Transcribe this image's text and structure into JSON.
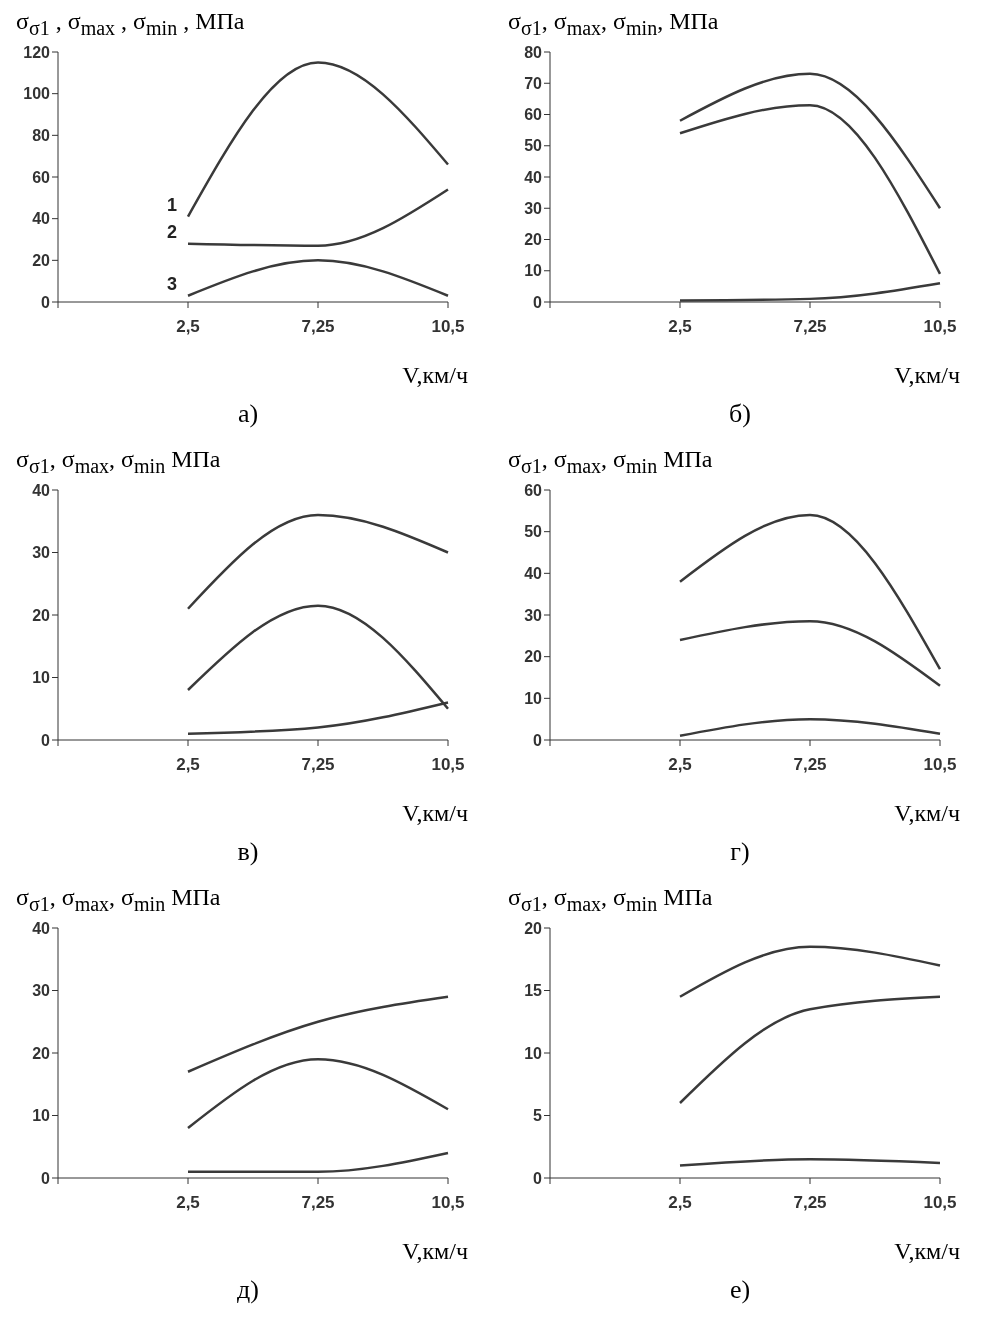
{
  "chart_data": [
    {
      "type": "line",
      "title": "а)",
      "ylabel": "σ$_{σ1}$ , σ$_{max}$ , σ$_{min}$ , МПа",
      "xlabel": "V,км/ч",
      "categories": [
        null,
        "2,5",
        "7,25",
        "10,5"
      ],
      "ylim": [
        0,
        120
      ],
      "yticks": [
        0,
        20,
        40,
        60,
        80,
        100,
        120
      ],
      "grid": false,
      "legend": false,
      "marker": "none",
      "line_style": "solid",
      "series": [
        {
          "name": "1",
          "color": "#3a3a3a",
          "values": [
            null,
            41,
            115,
            66
          ]
        },
        {
          "name": "2",
          "color": "#3a3a3a",
          "values": [
            null,
            28,
            27,
            54
          ]
        },
        {
          "name": "3",
          "color": "#3a3a3a",
          "values": [
            null,
            3,
            20,
            3
          ]
        }
      ]
    },
    {
      "type": "line",
      "title": "б)",
      "ylabel": "σ$_{σ1}$, σ$_{max}$, σ$_{min}$, МПа",
      "xlabel": "V,км/ч",
      "categories": [
        null,
        "2,5",
        "7,25",
        "10,5"
      ],
      "ylim": [
        0,
        80
      ],
      "yticks": [
        0,
        10,
        20,
        30,
        40,
        50,
        60,
        70,
        80
      ],
      "grid": false,
      "legend": false,
      "marker": "none",
      "line_style": "solid",
      "series": [
        {
          "color": "#3a3a3a",
          "values": [
            null,
            58,
            73,
            30
          ]
        },
        {
          "color": "#3a3a3a",
          "values": [
            null,
            54,
            63,
            9
          ]
        },
        {
          "color": "#3a3a3a",
          "values": [
            null,
            0.5,
            1,
            6
          ]
        }
      ]
    },
    {
      "type": "line",
      "title": "в)",
      "ylabel": "σ$_{σ1}$, σ$_{max}$, σ$_{min}$  МПа",
      "xlabel": "V,км/ч",
      "categories": [
        null,
        "2,5",
        "7,25",
        "10,5"
      ],
      "ylim": [
        0,
        40
      ],
      "yticks": [
        0,
        10,
        20,
        30,
        40
      ],
      "grid": false,
      "legend": false,
      "marker": "none",
      "line_style": "solid",
      "series": [
        {
          "color": "#3a3a3a",
          "values": [
            null,
            21,
            36,
            30
          ]
        },
        {
          "color": "#3a3a3a",
          "values": [
            null,
            8,
            21.5,
            5
          ]
        },
        {
          "color": "#3a3a3a",
          "values": [
            null,
            1,
            2,
            6
          ]
        }
      ]
    },
    {
      "type": "line",
      "title": "г)",
      "ylabel": "σ$_{σ1}$, σ$_{max}$, σ$_{min}$  МПа",
      "xlabel": "V,км/ч",
      "categories": [
        null,
        "2,5",
        "7,25",
        "10,5"
      ],
      "ylim": [
        0,
        60
      ],
      "yticks": [
        0,
        10,
        20,
        30,
        40,
        50,
        60
      ],
      "grid": false,
      "legend": false,
      "marker": "none",
      "line_style": "solid",
      "series": [
        {
          "color": "#3a3a3a",
          "values": [
            null,
            38,
            54,
            17
          ]
        },
        {
          "color": "#3a3a3a",
          "values": [
            null,
            24,
            28.5,
            13
          ]
        },
        {
          "color": "#3a3a3a",
          "values": [
            null,
            1,
            5,
            1.5
          ]
        }
      ]
    },
    {
      "type": "line",
      "title": "д)",
      "ylabel": "σ$_{σ1}$, σ$_{max}$, σ$_{min}$  МПа",
      "xlabel": "V,км/ч",
      "categories": [
        null,
        "2,5",
        "7,25",
        "10,5"
      ],
      "ylim": [
        0,
        40
      ],
      "yticks": [
        0,
        10,
        20,
        30,
        40
      ],
      "grid": false,
      "legend": false,
      "marker": "none",
      "line_style": "solid",
      "series": [
        {
          "color": "#3a3a3a",
          "values": [
            null,
            17,
            25,
            29
          ]
        },
        {
          "color": "#3a3a3a",
          "values": [
            null,
            8,
            19,
            11
          ]
        },
        {
          "color": "#3a3a3a",
          "values": [
            null,
            1,
            1,
            4
          ]
        }
      ]
    },
    {
      "type": "line",
      "title": "е)",
      "ylabel": "σ$_{σ1}$, σ$_{max}$, σ$_{min}$  МПа",
      "xlabel": "V,км/ч",
      "categories": [
        null,
        "2,5",
        "7,25",
        "10,5"
      ],
      "ylim": [
        0,
        20
      ],
      "yticks": [
        0,
        5,
        10,
        15,
        20
      ],
      "grid": false,
      "legend": false,
      "marker": "none",
      "line_style": "solid",
      "series": [
        {
          "color": "#3a3a3a",
          "values": [
            null,
            14.5,
            18.5,
            17
          ]
        },
        {
          "color": "#3a3a3a",
          "values": [
            null,
            6,
            13.5,
            14.5
          ]
        },
        {
          "color": "#3a3a3a",
          "values": [
            null,
            1,
            1.5,
            1.2
          ]
        }
      ]
    }
  ]
}
